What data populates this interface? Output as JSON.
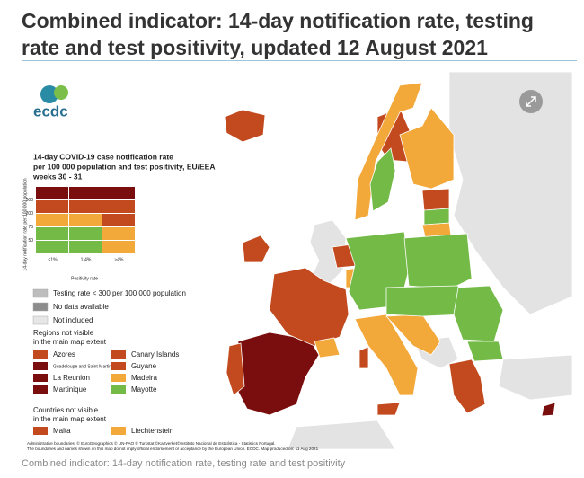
{
  "header": {
    "title": "Combined indicator: 14-day notification rate, testing rate and test positivity, updated 12 August 2021"
  },
  "logo": {
    "text": "ecdc"
  },
  "legend": {
    "title_lines": [
      "14-day COVID-19 case notification rate",
      "per 100 000 population and test positivity, EU/EEA",
      "weeks 30 - 31"
    ],
    "matrix": {
      "y_axis_label": "14-day notification rate per 100 000 population",
      "y_ticks": [
        "500",
        "200",
        "75",
        "50"
      ],
      "x_ticks": [
        "<1%",
        "1-4%",
        "≥4%"
      ],
      "x_axis_label": "Positivity rate"
    },
    "items": [
      "Testing rate < 300 per 100 000 population",
      "No data available",
      "Not included"
    ],
    "regions_heading_lines": [
      "Regions not visible",
      "in the main map extent"
    ],
    "regions": [
      "Azores",
      "Canary Islands",
      "Guadeloupe and Saint Martin",
      "Guyane",
      "La Reunion",
      "Madeira",
      "Martinique",
      "Mayotte"
    ],
    "countries_heading_lines": [
      "Countries not visible",
      "in the main map extent"
    ],
    "countries": [
      "Malta",
      "Liechtenstein"
    ]
  },
  "footnote": {
    "lines": [
      "Administrative boundaries: © EuroGeographics © UN-FAO © Turkstat ©Kartverket©Instituto Nacional de Estatística - Statistics Portugal.",
      "The boundaries and names shown on this map do not imply official endorsement or acceptance by the European Union. ECDC. Map produced on: 11 Aug 2021"
    ]
  },
  "caption": "Combined indicator: 14-day notification rate, testing rate and test positivity"
}
